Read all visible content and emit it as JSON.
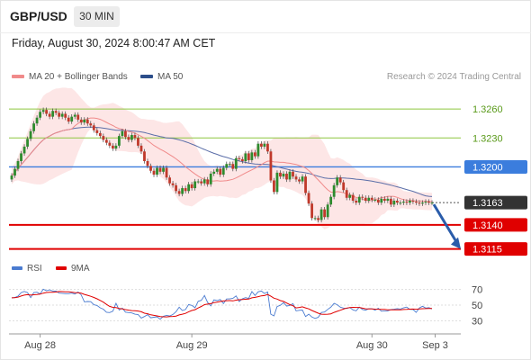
{
  "header": {
    "symbol": "GBP/USD",
    "timeframe": "30 MIN",
    "timestamp": "Friday, August 30, 2024 8:00:47 AM CET"
  },
  "legend": {
    "ma20_label": "MA 20 + Bollinger Bands",
    "ma50_label": "MA 50",
    "credit": "Research © 2024 Trading Central",
    "rsi_label": "RSI",
    "ma9_label": "9MA"
  },
  "colors": {
    "resistance": "#8dc63f",
    "pivot": "#3b7ddd",
    "support": "#e00000",
    "current": "#333333",
    "ma20": "#f08a8a",
    "band": "#fde0e0",
    "ma50": "#5b6ea8",
    "up_candle": "#2e8b2e",
    "down_candle": "#c0392b",
    "rsi": "#4a7bd0",
    "ma9": "#e00000",
    "arrow": "#2a5caa"
  },
  "chart_data": {
    "type": "candlestick",
    "levels": [
      {
        "label": "1.3260",
        "value": 1.326,
        "kind": "resistance"
      },
      {
        "label": "1.3230",
        "value": 1.323,
        "kind": "resistance"
      },
      {
        "label": "1.3200",
        "value": 1.32,
        "kind": "pivot"
      },
      {
        "label": "1.3163",
        "value": 1.3163,
        "kind": "current"
      },
      {
        "label": "1.3140",
        "value": 1.314,
        "kind": "support"
      },
      {
        "label": "1.3115",
        "value": 1.3115,
        "kind": "support"
      }
    ],
    "price_range": [
      1.311,
      1.3275
    ],
    "x_ticks": [
      "Aug 28",
      "Aug 29",
      "Aug 30",
      "Sep 3"
    ],
    "x_tick_index": [
      9,
      57,
      114,
      134
    ],
    "n_bars": 134,
    "closes": [
      1.3191,
      1.3198,
      1.3206,
      1.3214,
      1.3221,
      1.3229,
      1.3237,
      1.3245,
      1.3251,
      1.3257,
      1.3259,
      1.3255,
      1.3252,
      1.3258,
      1.3256,
      1.3252,
      1.3255,
      1.3251,
      1.3247,
      1.3252,
      1.3254,
      1.3249,
      1.3246,
      1.3249,
      1.3245,
      1.3243,
      1.3238,
      1.3235,
      1.3232,
      1.3228,
      1.3225,
      1.3222,
      1.3219,
      1.3222,
      1.3232,
      1.3237,
      1.3231,
      1.3228,
      1.3233,
      1.323,
      1.3222,
      1.3216,
      1.3206,
      1.3201,
      1.3196,
      1.3192,
      1.3199,
      1.3195,
      1.3199,
      1.3189,
      1.3183,
      1.3181,
      1.3175,
      1.3172,
      1.3178,
      1.3175,
      1.3182,
      1.3178,
      1.3185,
      1.3185,
      1.3183,
      1.3187,
      1.3182,
      1.3193,
      1.3195,
      1.3198,
      1.3192,
      1.3199,
      1.3203,
      1.3203,
      1.3198,
      1.3209,
      1.3208,
      1.3206,
      1.3214,
      1.3207,
      1.3215,
      1.3211,
      1.3224,
      1.3221,
      1.3224,
      1.3216,
      1.3186,
      1.3174,
      1.3194,
      1.319,
      1.3193,
      1.3187,
      1.3195,
      1.319,
      1.3187,
      1.3185,
      1.319,
      1.3173,
      1.3162,
      1.3147,
      1.3147,
      1.3145,
      1.3156,
      1.3148,
      1.3161,
      1.3169,
      1.3181,
      1.3189,
      1.3184,
      1.3176,
      1.3168,
      1.3171,
      1.3165,
      1.3163,
      1.3169,
      1.3168,
      1.3165,
      1.3168,
      1.3166,
      1.3166,
      1.3163,
      1.3167,
      1.3165,
      1.3167,
      1.3161,
      1.3165,
      1.3163,
      1.3163,
      1.3164,
      1.3163,
      1.3165,
      1.3164,
      1.3163,
      1.3162,
      1.3163,
      1.3164,
      1.3163,
      1.3163
    ],
    "forecast_target": 1.3115,
    "rsi": {
      "ticks": [
        70,
        50,
        30
      ],
      "range": [
        20,
        80
      ],
      "values": [
        59.4,
        59.8,
        61.4,
        66.0,
        67.5,
        66.0,
        59.6,
        66.1,
        66.5,
        64.3,
        70.4,
        68.5,
        69.5,
        68.0,
        67.9,
        65.3,
        65.1,
        64.7,
        64.7,
        65.4,
        64.2,
        66.9,
        63.1,
        54.2,
        54.6,
        54.4,
        50.5,
        49.5,
        46.5,
        44.8,
        40.8,
        40.4,
        42.1,
        52.3,
        43.7,
        46.2,
        41.0,
        40.4,
        40.0,
        38.3,
        37.8,
        33.4,
        35.4,
        37.8,
        33.7,
        34.4,
        35.0,
        31.9,
        35.7,
        36.8,
        36.0,
        38.0,
        41.6,
        47.4,
        43.1,
        44.3,
        50.7,
        49.7,
        46.6,
        54.9,
        56.1,
        62.4,
        53.3,
        49.0,
        56.7,
        55.8,
        57.2,
        52.1,
        57.9,
        58.0,
        58.7,
        61.8,
        54.6,
        58.1,
        59.6,
        58.5,
        67.3,
        62.3,
        67.1,
        68.0,
        64.9,
        66.9,
        38.4,
        36.1,
        48.2,
        49.8,
        53.1,
        48.7,
        49.6,
        51.8,
        42.6,
        43.3,
        43.6,
        35.4,
        38.3,
        34.7,
        32.9,
        34.3,
        40.5,
        41.1,
        44.5,
        47.4,
        52.2,
        50.5,
        47.3,
        46.2,
        45.6,
        46.9,
        43.9,
        42.6,
        47.5,
        44.3,
        43.5,
        45.4,
        45.3,
        43.5,
        45.8,
        42.1,
        42.6,
        42.6,
        44.2,
        44.7,
        45.4,
        44.9,
        46.5,
        47.5,
        44.6,
        44.3,
        40.6,
        46.4,
        48.5,
        46.2,
        46.8,
        45.2
      ]
    }
  }
}
